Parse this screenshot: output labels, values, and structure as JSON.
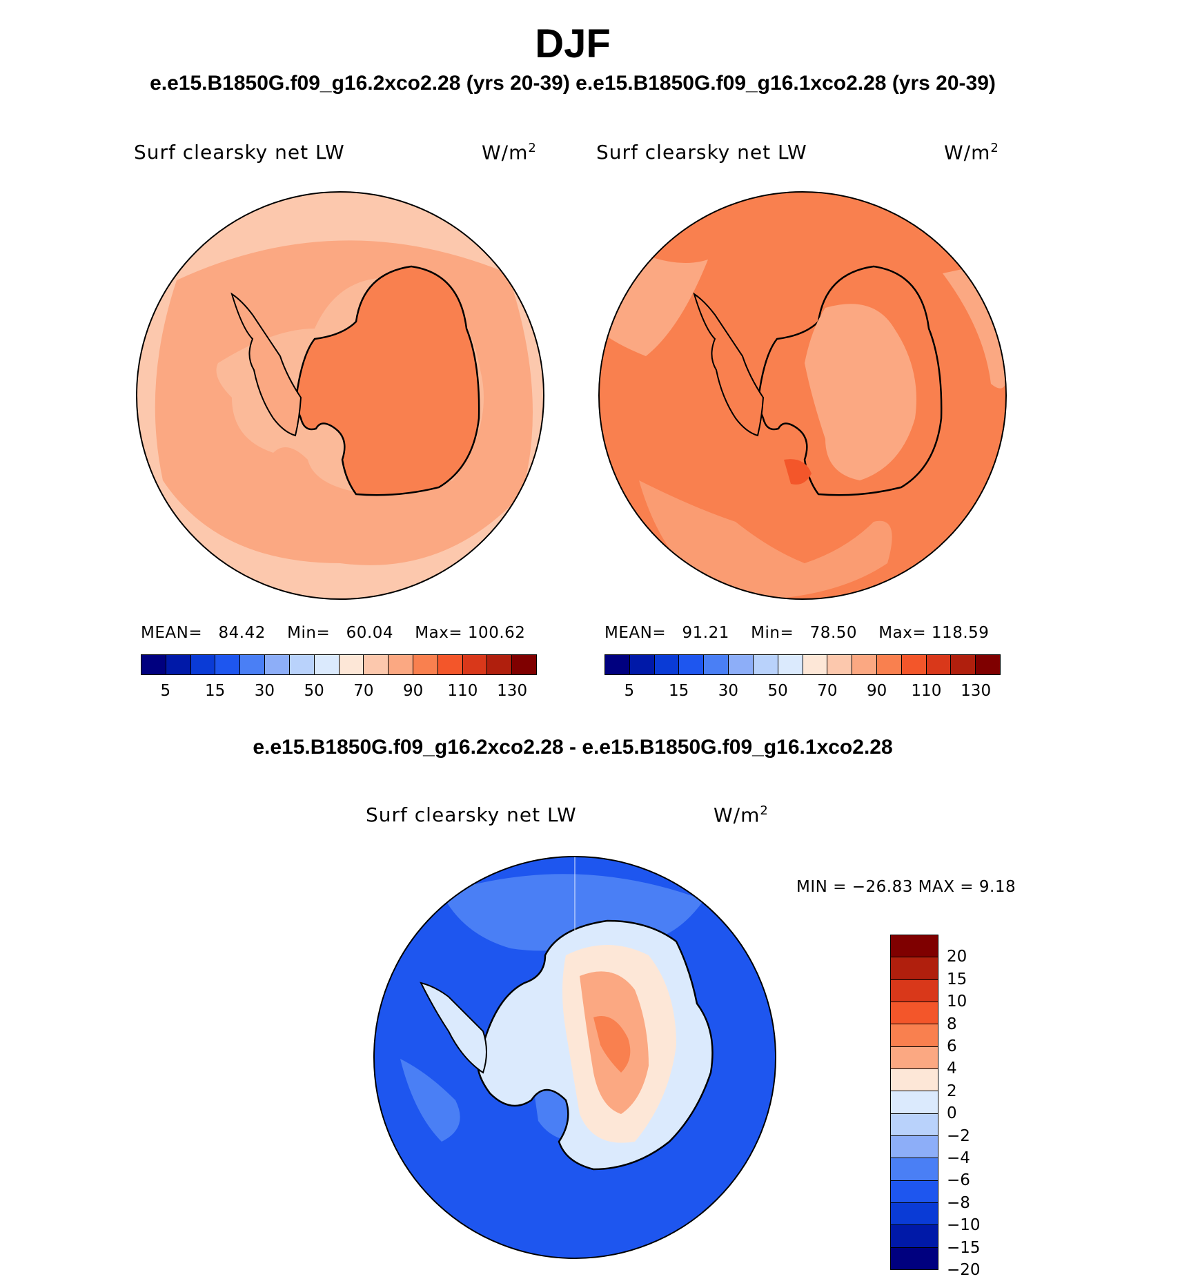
{
  "figure": {
    "season": "DJF",
    "runs_header": "e.e15.B1850G.f09_g16.2xco2.28 (yrs 20-39) e.e15.B1850G.f09_g16.1xco2.28 (yrs 20-39)",
    "diff_header": "e.e15.B1850G.f09_g16.2xco2.28 - e.e15.B1850G.f09_g16.1xco2.28"
  },
  "panels": [
    {
      "variable": "Surf clearsky net LW",
      "units": "W/m",
      "units_exp": "2",
      "stats": {
        "mean_label": "MEAN=",
        "mean": "84.42",
        "min_label": "Min=",
        "min": "60.04",
        "max_label": "Max=",
        "max": "100.62"
      }
    },
    {
      "variable": "Surf clearsky net LW",
      "units": "W/m",
      "units_exp": "2",
      "stats": {
        "mean_label": "MEAN=",
        "mean": "91.21",
        "min_label": "Min=",
        "min": "78.50",
        "max_label": "Max=",
        "max": "118.59"
      }
    }
  ],
  "diff_panel": {
    "variable": "Surf clearsky net LW",
    "units": "W/m",
    "units_exp": "2",
    "minmax": "MIN = −26.83 MAX =    9.18"
  },
  "colorbar_abs": {
    "colors": [
      "#00007f",
      "#0019a8",
      "#0a3bd6",
      "#1e56ef",
      "#4a7ff5",
      "#8daef8",
      "#b9d2fb",
      "#dbeafd",
      "#fde7d7",
      "#fcc8ad",
      "#fba882",
      "#f9804f",
      "#f3562a",
      "#d9381a",
      "#b01f0d",
      "#7f0000"
    ],
    "tick_labels": [
      "5",
      "15",
      "30",
      "50",
      "70",
      "90",
      "110",
      "130"
    ]
  },
  "colorbar_diff": {
    "colors_top_to_bottom": [
      "#7f0000",
      "#b01f0d",
      "#d9381a",
      "#f3562a",
      "#f9804f",
      "#fba882",
      "#fde7d7",
      "#dbeafd",
      "#b9d2fb",
      "#8daef8",
      "#4a7ff5",
      "#1e56ef",
      "#0a3bd6",
      "#0019a8",
      "#00007f"
    ],
    "tick_labels": [
      "20",
      "15",
      "10",
      "8",
      "6",
      "4",
      "2",
      "0",
      "−2",
      "−4",
      "−6",
      "−8",
      "−10",
      "−15",
      "−20"
    ]
  },
  "map_fill_colors": {
    "panel1_ocean_outer": "#fcc8ad",
    "panel1_ocean_inner": "#fba882",
    "panel1_land": "#f9804f",
    "panel2_ocean": "#f9804f",
    "panel2_land_interior": "#fba882",
    "panel2_hot_spot": "#f3562a",
    "diff_ocean": "#1e56ef",
    "diff_ocean_light": "#4a7ff5",
    "diff_coast": "#dbeafd",
    "diff_land": "#fde7d7",
    "diff_land_warm": "#fba882",
    "diff_land_hot": "#f9804f"
  }
}
